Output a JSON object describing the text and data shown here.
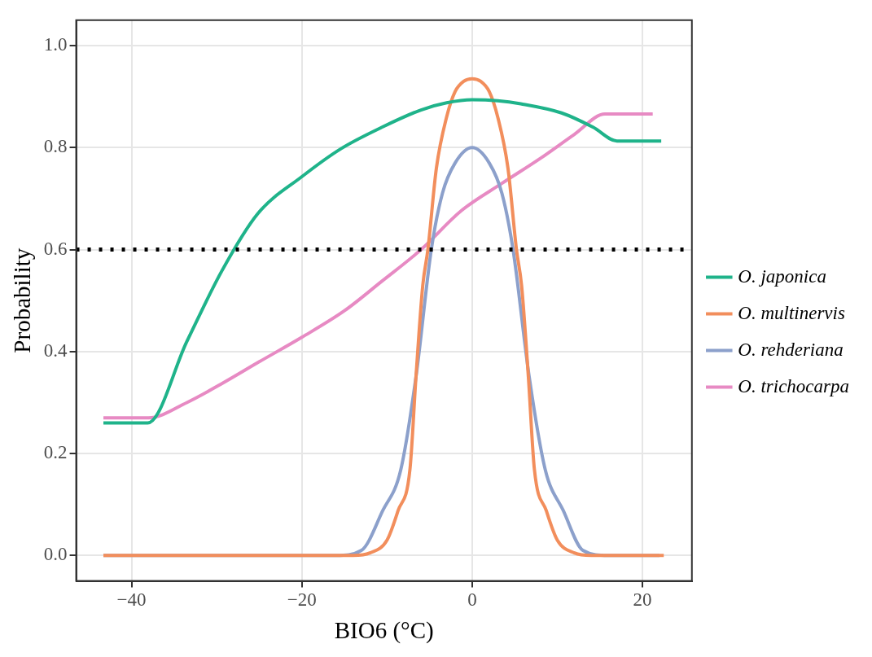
{
  "chart_data": {
    "type": "line",
    "xlabel": "BIO6 (°C)",
    "ylabel": "Probability",
    "xlim": [
      -46.5,
      25.8
    ],
    "ylim": [
      -0.05,
      1.05
    ],
    "xticks": [
      -40,
      -20,
      0,
      20
    ],
    "yticks": [
      {
        "value": 0,
        "label": "0.0"
      },
      0.2,
      0.4,
      0.6,
      0.8,
      {
        "value": 1,
        "label": "1.0"
      }
    ],
    "grid": true,
    "legend": "right",
    "line_style": "solid",
    "ref_lines": [
      {
        "axis": "y",
        "value": 0.6,
        "color": "#000000",
        "line_style": "dotted"
      }
    ],
    "series": [
      {
        "name": "O. japonica",
        "color": "#1fb38a",
        "x": [
          -43.3,
          -38.1,
          -33.5,
          -29.4,
          -25.2,
          -20,
          -15.4,
          -10.6,
          -6,
          -3,
          0,
          3,
          5.7,
          10.5,
          14.2,
          17,
          22.2
        ],
        "values": [
          0.26,
          0.26,
          0.42,
          0.558,
          0.67,
          0.743,
          0.798,
          0.84,
          0.874,
          0.888,
          0.894,
          0.892,
          0.886,
          0.868,
          0.84,
          0.813,
          0.813
        ]
      },
      {
        "name": "O. multinervis",
        "color": "#f28e5c",
        "x": [
          -43.3,
          -14,
          -12,
          -10,
          -8.7,
          -7.3,
          -6.6,
          -5.8,
          -5.2,
          -4.2,
          -3,
          -2,
          -1,
          0,
          1,
          2,
          3,
          4.2,
          5.2,
          5.8,
          6.6,
          7.3,
          8.7,
          10,
          12,
          14,
          22.5
        ],
        "values": [
          0,
          0,
          0.005,
          0.03,
          0.088,
          0.17,
          0.35,
          0.53,
          0.6,
          0.76,
          0.86,
          0.91,
          0.93,
          0.935,
          0.93,
          0.91,
          0.86,
          0.76,
          0.6,
          0.53,
          0.35,
          0.17,
          0.088,
          0.03,
          0.005,
          0,
          0
        ]
      },
      {
        "name": "O. rehderiana",
        "color": "#8ca0cb",
        "x": [
          -43.3,
          -16,
          -13,
          -10.5,
          -8.4,
          -6.6,
          -4.8,
          -3.5,
          -2,
          0,
          2,
          3.5,
          4.8,
          6.7,
          8.6,
          10.7,
          13,
          16,
          22
        ],
        "values": [
          0,
          0,
          0.01,
          0.088,
          0.167,
          0.35,
          0.6,
          0.71,
          0.77,
          0.8,
          0.77,
          0.71,
          0.6,
          0.35,
          0.167,
          0.088,
          0.01,
          0,
          0
        ]
      },
      {
        "name": "O. trichocarpa",
        "color": "#e78ac3",
        "x": [
          -43.3,
          -38,
          -33.5,
          -29.4,
          -25,
          -20,
          -15,
          -10.6,
          -6,
          -1.3,
          3.5,
          8.1,
          12,
          15.6,
          21.2
        ],
        "values": [
          0.27,
          0.27,
          0.3,
          0.337,
          0.38,
          0.428,
          0.48,
          0.538,
          0.6,
          0.676,
          0.73,
          0.78,
          0.826,
          0.866,
          0.866
        ]
      }
    ]
  }
}
